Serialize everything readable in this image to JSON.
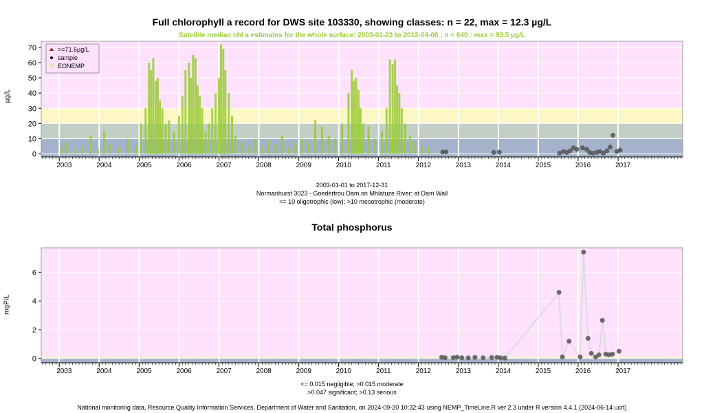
{
  "chart_data": [
    {
      "type": "scatter",
      "title": "Full chlorophyll a record for DWS site 103330, showing classes: n = 22, max = 12.3 µg/L",
      "subtitle": "Satellite median chl a estimates for the whole surface: 2003-01-23 to 2012-04-06 : n = 640 : max = 93.5 µg/L",
      "ylabel": "µg/L",
      "xlim": [
        "2002-07-20",
        "2018-08-15"
      ],
      "ylim": [
        -2,
        74
      ],
      "yticks": [
        0,
        10,
        20,
        30,
        40,
        50,
        60,
        70
      ],
      "xticks": [
        "2003",
        "2004",
        "2005",
        "2006",
        "2007",
        "2008",
        "2009",
        "2010",
        "2011",
        "2012",
        "2013",
        "2014",
        "2015",
        "2016",
        "2017"
      ],
      "grid": true,
      "legend_position": "top-left",
      "legend": [
        {
          "label": ">=71.6µg/L",
          "symbol": "triangle",
          "color": "#cc0000"
        },
        {
          "label": "sample",
          "symbol": "dot",
          "color": "#000000"
        },
        {
          "label": "EONEMP",
          "symbol": "square",
          "color": "#dce8a8"
        }
      ],
      "bands": [
        {
          "from": -2,
          "to": 10,
          "color": "#a4b3cb"
        },
        {
          "from": 10,
          "to": 20,
          "color": "#c3cec6"
        },
        {
          "from": 20,
          "to": 30,
          "color": "#fdf7c6"
        },
        {
          "from": 30,
          "to": 74,
          "color": "#fee1fd"
        }
      ],
      "satellite_series": {
        "name": "EONEMP",
        "color": "#99cc33",
        "x": [
          "2003-01-23",
          "2003-03-10",
          "2003-05-20",
          "2003-08-01",
          "2003-10-15",
          "2003-12-20",
          "2004-02-15",
          "2004-04-10",
          "2004-07-01",
          "2004-09-20",
          "2004-12-01",
          "2005-01-15",
          "2005-03-01",
          "2005-04-01",
          "2005-04-20",
          "2005-05-10",
          "2005-06-01",
          "2005-06-20",
          "2005-07-10",
          "2005-08-01",
          "2005-09-01",
          "2005-10-01",
          "2005-11-15",
          "2006-01-01",
          "2006-02-01",
          "2006-03-01",
          "2006-04-01",
          "2006-04-20",
          "2006-05-10",
          "2006-06-01",
          "2006-06-20",
          "2006-07-10",
          "2006-08-01",
          "2006-09-01",
          "2006-10-01",
          "2006-11-01",
          "2006-12-01",
          "2007-01-01",
          "2007-01-20",
          "2007-02-10",
          "2007-03-01",
          "2007-04-01",
          "2007-05-01",
          "2007-06-01",
          "2007-08-01",
          "2007-10-01",
          "2007-12-01",
          "2008-02-01",
          "2008-04-01",
          "2008-06-01",
          "2008-08-01",
          "2008-10-01",
          "2008-12-01",
          "2009-02-01",
          "2009-04-01",
          "2009-06-01",
          "2009-08-01",
          "2009-10-01",
          "2009-12-01",
          "2010-02-01",
          "2010-04-01",
          "2010-05-01",
          "2010-05-20",
          "2010-06-10",
          "2010-07-01",
          "2010-07-20",
          "2010-08-15",
          "2010-10-01",
          "2010-12-01",
          "2011-02-01",
          "2011-03-15",
          "2011-04-15",
          "2011-05-10",
          "2011-06-01",
          "2011-06-20",
          "2011-07-10",
          "2011-08-01",
          "2011-09-01",
          "2011-10-15",
          "2011-12-01",
          "2012-02-01",
          "2012-04-06"
        ],
        "values": [
          4,
          8,
          3,
          5,
          12,
          3,
          15,
          6,
          4,
          10,
          5,
          20,
          30,
          60,
          55,
          63,
          48,
          50,
          35,
          30,
          20,
          22,
          15,
          25,
          38,
          55,
          60,
          50,
          65,
          63,
          45,
          38,
          30,
          15,
          20,
          30,
          40,
          50,
          72,
          69,
          55,
          40,
          25,
          12,
          8,
          5,
          10,
          5,
          9,
          6,
          12,
          4,
          8,
          10,
          8,
          22,
          18,
          12,
          10,
          20,
          40,
          55,
          48,
          50,
          42,
          30,
          20,
          18,
          10,
          15,
          30,
          62,
          59,
          62,
          45,
          40,
          30,
          20,
          12,
          8,
          5,
          4
        ]
      },
      "sample_series": {
        "name": "sample",
        "color": "#555555",
        "x": [
          "2012-08-10",
          "2012-09-10",
          "2013-11-20",
          "2014-01-10",
          "2015-07-15",
          "2015-08-20",
          "2015-09-20",
          "2015-10-20",
          "2015-11-20",
          "2015-12-20",
          "2016-02-10",
          "2016-03-20",
          "2016-04-15",
          "2016-05-15",
          "2016-06-20",
          "2016-07-20",
          "2016-08-20",
          "2016-09-20",
          "2016-10-20",
          "2016-11-15",
          "2016-12-20",
          "2017-01-20"
        ],
        "values": [
          1.2,
          1.3,
          1.0,
          1.1,
          0.5,
          1.5,
          1.0,
          2.0,
          4.0,
          3.0,
          4.0,
          3.0,
          1.0,
          0.5,
          1.0,
          1.5,
          0.5,
          2.0,
          4.5,
          12.3,
          1.5,
          2.5
        ]
      },
      "date_range": "2003-01-01 to 2017-12-31",
      "site_caption": "Normanhurst 3023 - Goedertrou Dam on Mhlatuze River: at Dam Wall",
      "class_caption": "<= 10 oligotrophic (low); >10 mesotrophic (moderate)"
    },
    {
      "type": "line",
      "title": "Total phosphorus",
      "ylabel": "mgP/L",
      "xlim": [
        "2002-07-20",
        "2018-08-15"
      ],
      "ylim": [
        -0.3,
        7.7
      ],
      "yticks": [
        0,
        2,
        4,
        6
      ],
      "xticks": [
        "2003",
        "2004",
        "2005",
        "2006",
        "2007",
        "2008",
        "2009",
        "2010",
        "2011",
        "2012",
        "2013",
        "2014",
        "2015",
        "2016",
        "2017"
      ],
      "grid": true,
      "bands": [
        {
          "from": -0.3,
          "to": 0.015,
          "color": "#a4b3cb"
        },
        {
          "from": 0.015,
          "to": 0.047,
          "color": "#c3cec6"
        },
        {
          "from": 0.047,
          "to": 0.13,
          "color": "#fdf7c6"
        },
        {
          "from": 0.13,
          "to": 7.7,
          "color": "#fee1fd"
        }
      ],
      "series": [
        {
          "name": "sample",
          "color": "#555555",
          "x": [
            "2012-08-01",
            "2012-09-01",
            "2012-11-15",
            "2012-12-20",
            "2013-02-01",
            "2013-04-01",
            "2013-06-01",
            "2013-08-15",
            "2013-11-01",
            "2013-12-20",
            "2014-01-20",
            "2014-03-01",
            "2015-07-10",
            "2015-08-10",
            "2015-10-10",
            "2016-01-20",
            "2016-02-20",
            "2016-04-01",
            "2016-05-01",
            "2016-06-10",
            "2016-07-10",
            "2016-08-10",
            "2016-09-10",
            "2016-10-10",
            "2016-11-10",
            "2017-01-10"
          ],
          "values": [
            0.08,
            0.05,
            0.06,
            0.09,
            0.05,
            0.04,
            0.07,
            0.05,
            0.06,
            0.08,
            0.04,
            0.03,
            4.6,
            0.1,
            1.2,
            0.1,
            7.4,
            1.4,
            0.35,
            0.1,
            0.25,
            2.65,
            0.3,
            0.25,
            0.3,
            0.5
          ]
        }
      ],
      "class_caption_1": "<= 0.015 negligible; >0.015 moderate",
      "class_caption_2": ">0.047 significant; >0.13 serious"
    }
  ],
  "footer": "National monitoring data, Resource Quality Information Services, Department of Water and Sanitation, on 2024-09-20 10:32:43 using NEMP_TimeLine.R ver 2.3 under R version 4.4.1 (2024-06-14 ucrt)"
}
